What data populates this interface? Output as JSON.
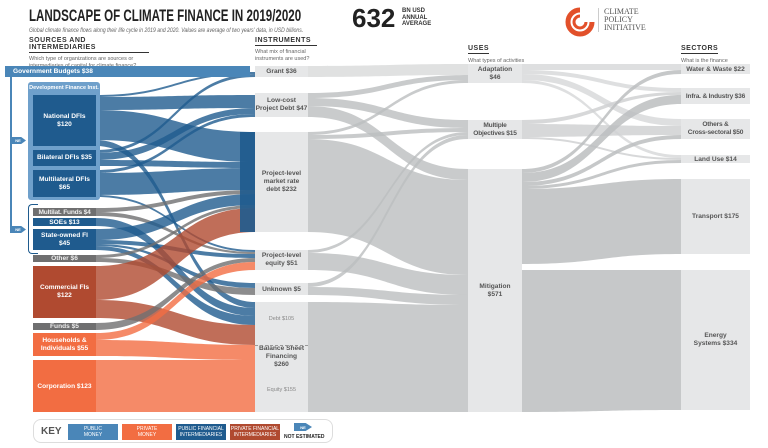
{
  "header": {
    "title": "LANDSCAPE OF CLIMATE FINANCE IN 2019/2020",
    "subtitle": "Global climate finance flows along their life cycle in 2019 and 2020. Values are average of two years' data, in USD billions.",
    "total": "632",
    "total_unit": [
      "BN USD",
      "ANNUAL",
      "AVERAGE"
    ],
    "logo_text": [
      "CLIMATE",
      "POLICY",
      "INITIATIVE"
    ]
  },
  "columns": {
    "sources": {
      "title": "SOURCES AND INTERMEDIARIES",
      "question": "Which type of organizations are sources or intermediaries of capital for climate finance?"
    },
    "instruments": {
      "title": "INSTRUMENTS",
      "question": "What mix of financial instruments are used?"
    },
    "uses": {
      "title": "USES",
      "question": "What types of activities are financed?"
    },
    "sectors": {
      "title": "SECTORS",
      "question": "What is the finance used for?"
    }
  },
  "sources": {
    "gov": "Government Budgets $38",
    "dfi_group": "Development Finance Inst.",
    "national": "National DFIs\n$120",
    "bilateral": "Bilateral DFIs $35",
    "multilateral": "Multilateral DFIs\n$65",
    "multilat_funds": "Multilat. Funds $4",
    "soes": "SOEs $13",
    "state_fi": "State-owned FI\n$45",
    "other": "Other $6",
    "commercial": "Commercial FIs\n$122",
    "funds": "Funds $5",
    "households": "Households &\nIndividuals $55",
    "corporation": "Corporation $123",
    "ne": "NE"
  },
  "instruments": {
    "grant": "Grant $36",
    "lowcost": "Low-cost\nProject Debt $47",
    "market_debt": "Project-level\nmarket rate\ndebt $232",
    "equity": "Project-level\nequity $51",
    "unknown": "Unknown $5",
    "bs_debt": "Debt $105",
    "balance_sheet": "Balance Sheet\nFinancing\n$260",
    "bs_equity": "Equity $155"
  },
  "uses": {
    "adaptation": "Adaptation\n$46",
    "multiple": "Multiple\nObjectives $15",
    "mitigation": "Mitigation\n$571"
  },
  "sectors": {
    "water": "Water & Waste $22",
    "infra": "Infra. & Industry $36",
    "others": "Others &\nCross-sectoral $50",
    "land": "Land Use $14",
    "transport": "Transport $175",
    "energy": "Energy\nSystems $334"
  },
  "key": {
    "label": "KEY",
    "public_money": "PUBLIC\nMONEY",
    "private_money": "PRIVATE\nMONEY",
    "public_fi": "PUBLIC FINANCIAL\nINTERMEDIARIES",
    "private_fi": "PRIVATE FINANCIAL\nINTERMEDIARIES",
    "ne": "NE",
    "not_estimated": "NOT ESTIMATED"
  },
  "colors": {
    "public_money": "#4a86b8",
    "private_money": "#f26d42",
    "public_fi": "#1f5b8e",
    "private_fi": "#b04a30",
    "not_estimated": "#6f6f70",
    "flow": "#bcbebf",
    "node": "#e6e7e8",
    "logo": "#e2502a"
  }
}
